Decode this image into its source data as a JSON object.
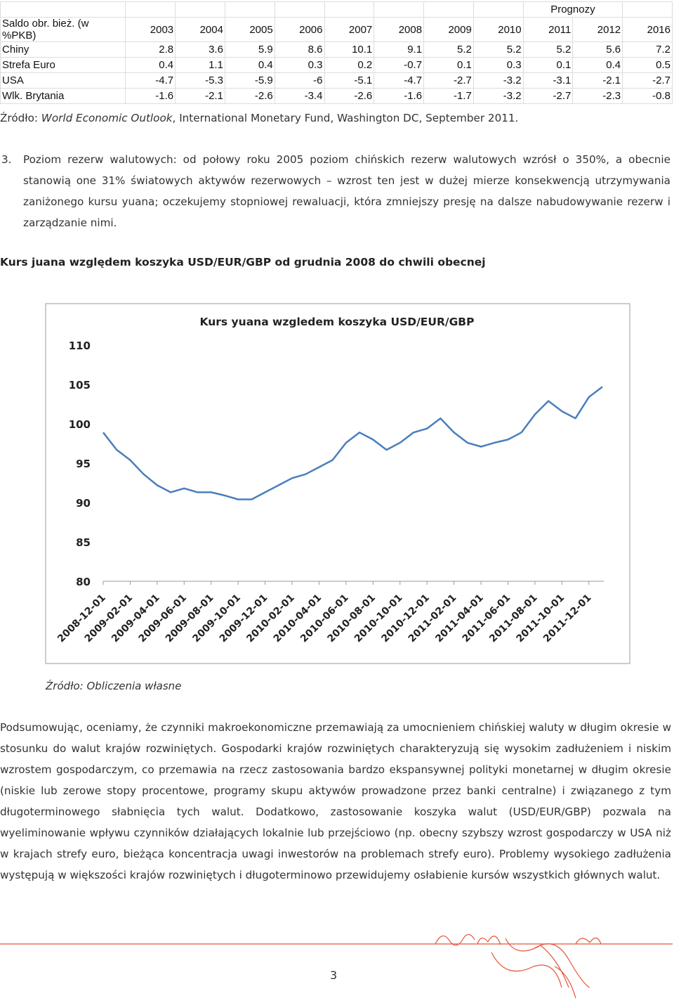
{
  "table": {
    "forecast_label": "Prognozy",
    "header": [
      "Saldo obr. bież. (w %PKB)",
      "2003",
      "2004",
      "2005",
      "2006",
      "2007",
      "2008",
      "2009",
      "2010",
      "2011",
      "2012",
      "2016"
    ],
    "rows": [
      [
        "Chiny",
        "2.8",
        "3.6",
        "5.9",
        "8.6",
        "10.1",
        "9.1",
        "5.2",
        "5.2",
        "5.2",
        "5.6",
        "7.2"
      ],
      [
        "Strefa Euro",
        "0.4",
        "1.1",
        "0.4",
        "0.3",
        "0.2",
        "-0.7",
        "0.1",
        "0.3",
        "0.1",
        "0.4",
        "0.5"
      ],
      [
        "USA",
        "-4.7",
        "-5.3",
        "-5.9",
        "-6",
        "-5.1",
        "-4.7",
        "-2.7",
        "-3.2",
        "-3.1",
        "-2.1",
        "-2.7"
      ],
      [
        "Wlk. Brytania",
        "-1.6",
        "-2.1",
        "-2.6",
        "-3.4",
        "-2.6",
        "-1.6",
        "-1.7",
        "-3.2",
        "-2.7",
        "-2.3",
        "-0.8"
      ]
    ]
  },
  "table_source": {
    "prefix": "Źródło: ",
    "title": "World Economic Outlook",
    "rest": ", International Monetary Fund, Washington DC, September 2011."
  },
  "point3": {
    "number": "3.",
    "text": "Poziom rezerw walutowych: od połowy roku 2005 poziom chińskich rezerw walutowych wzrósł o 350%, a obecnie stanowią one 31% światowych aktywów rezerwowych – wzrost ten jest w dużej mierze konsekwencją utrzymywania zaniżonego kursu yuana; oczekujemy stopniowej rewaluacji, która zmniejszy presję na dalsze nabudowywanie rezerw i zarządzanie nimi."
  },
  "figure_caption": "Kurs juana względem koszyka USD/EUR/GBP od grudnia 2008 do chwili obecnej",
  "chart_data": {
    "type": "line",
    "title": "Kurs yuana wzgledem koszyka USD/EUR/GBP",
    "color": "#4a7ebb",
    "x": [
      "2008-12-01",
      "2009-01-01",
      "2009-02-01",
      "2009-03-01",
      "2009-04-01",
      "2009-05-01",
      "2009-06-01",
      "2009-07-01",
      "2009-08-01",
      "2009-09-01",
      "2009-10-01",
      "2009-11-01",
      "2009-12-01",
      "2010-01-01",
      "2010-02-01",
      "2010-03-01",
      "2010-04-01",
      "2010-05-01",
      "2010-06-01",
      "2010-07-01",
      "2010-08-01",
      "2010-09-01",
      "2010-10-01",
      "2010-11-01",
      "2010-12-01",
      "2011-01-01",
      "2011-02-01",
      "2011-03-01",
      "2011-04-01",
      "2011-05-01",
      "2011-06-01",
      "2011-07-01",
      "2011-08-01",
      "2011-09-01",
      "2011-10-01",
      "2011-11-01",
      "2011-12-01",
      "2012-01-01"
    ],
    "values": [
      98.9,
      96.7,
      95.4,
      93.6,
      92.2,
      91.3,
      91.8,
      91.3,
      91.3,
      90.9,
      90.4,
      90.4,
      91.3,
      92.2,
      93.1,
      93.6,
      94.5,
      95.4,
      97.6,
      98.9,
      98.0,
      96.7,
      97.6,
      98.9,
      99.4,
      100.7,
      98.9,
      97.6,
      97.1,
      97.6,
      98.0,
      98.9,
      101.2,
      102.9,
      101.6,
      100.7,
      103.4,
      104.7
    ],
    "xlim": [
      "2008-12-01",
      "2012-01-01"
    ],
    "xticks": [
      "2008-12-01",
      "2009-02-01",
      "2009-04-01",
      "2009-06-01",
      "2009-08-01",
      "2009-10-01",
      "2009-12-01",
      "2010-02-01",
      "2010-04-01",
      "2010-06-01",
      "2010-08-01",
      "2010-10-01",
      "2010-12-01",
      "2011-02-01",
      "2011-04-01",
      "2011-06-01",
      "2011-08-01",
      "2011-10-01",
      "2011-12-01"
    ],
    "ylim": [
      80,
      110
    ],
    "yticks": [
      80,
      85,
      90,
      95,
      100,
      105,
      110
    ],
    "grid": false
  },
  "figure_source": "Źródło: Obliczenia własne",
  "summary": "Podsumowując, oceniamy, że czynniki makroekonomiczne przemawiają za umocnieniem chińskiej waluty w długim okresie w stosunku do walut krajów rozwiniętych. Gospodarki krajów rozwiniętych charakteryzują się wysokim zadłużeniem i niskim wzrostem gospodarczym, co przemawia na rzecz zastosowania bardzo ekspansywnej polityki monetarnej w długim okresie (niskie lub zerowe stopy procentowe, programy skupu aktywów prowadzone przez banki centralne) i związanego z tym długoterminowego słabnięcia tych walut. Dodatkowo, zastosowanie koszyka walut (USD/EUR/GBP) pozwala na wyeliminowanie wpływu czynników działających lokalnie lub przejściowo (np. obecny szybszy wzrost gospodarczy w USA niż w krajach strefy euro, bieżąca koncentracja uwagi inwestorów na problemach strefy euro). Problemy wysokiego zadłużenia występują w większości krajów rozwiniętych i długoterminowo przewidujemy osłabienie kursów wszystkich głównych walut.",
  "page_number": "3"
}
